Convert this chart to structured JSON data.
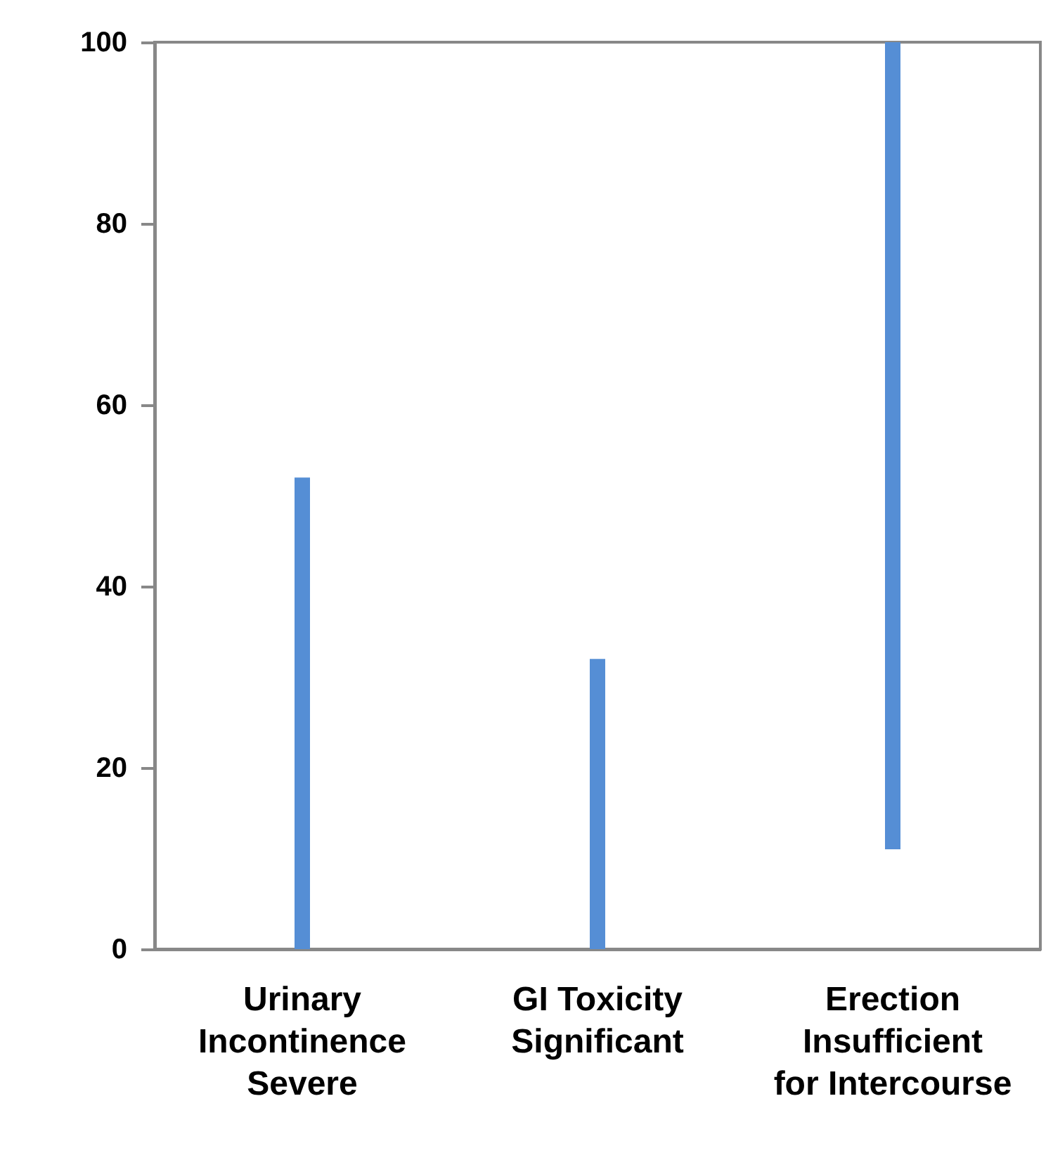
{
  "chart_data": {
    "type": "bar",
    "categories": [
      "Urinary\nIncontinence\nSevere",
      "GI Toxicity\nSignificant",
      "Erection\nInsufficient\nfor Intercourse"
    ],
    "values": [
      52,
      32,
      89
    ],
    "base": [
      0,
      0,
      11
    ],
    "color": "#558ed5",
    "ylim": [
      0,
      100
    ],
    "yticks": [
      0,
      20,
      40,
      60,
      80,
      100
    ],
    "grid": false
  }
}
